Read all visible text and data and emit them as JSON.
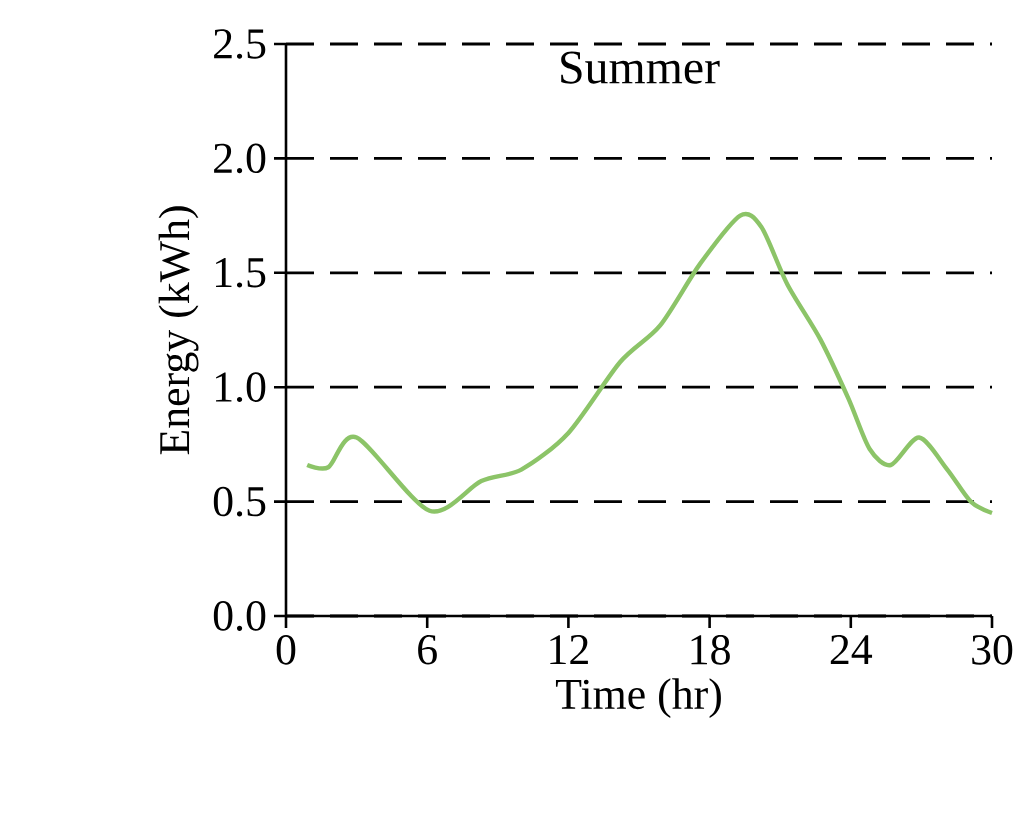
{
  "chart_data": {
    "type": "line",
    "title": "Summer",
    "xlabel": "Time (hr)",
    "ylabel": "Energy (kWh)",
    "x": [
      0.9,
      1.8,
      3,
      6.1,
      8.3,
      10,
      12,
      14.2,
      15.9,
      17.6,
      19.3,
      20.2,
      21.3,
      22.7,
      23.9,
      24.8,
      25.7,
      26.9,
      28.1,
      29.1,
      30
    ],
    "series": [
      {
        "color": "#8cc468",
        "values": [
          0.66,
          0.65,
          0.78,
          0.46,
          0.59,
          0.64,
          0.8,
          1.11,
          1.27,
          1.54,
          1.75,
          1.7,
          1.45,
          1.21,
          0.95,
          0.73,
          0.66,
          0.78,
          0.64,
          0.5,
          0.45
        ]
      }
    ],
    "xlim": [
      0,
      30
    ],
    "xticks": [
      0,
      6,
      12,
      18,
      24,
      30
    ],
    "ylim": [
      0,
      2.5
    ],
    "yticks": [
      {
        "value": 0,
        "label": "0.0"
      },
      {
        "value": 0.5,
        "label": "0.5"
      },
      {
        "value": 1,
        "label": "1.0"
      },
      {
        "value": 1.5,
        "label": "1.5"
      },
      {
        "value": 2,
        "label": "2.0"
      },
      {
        "value": 2.5,
        "label": "2.5"
      }
    ],
    "grid": "y",
    "marker": "none",
    "line_style": "solid"
  }
}
